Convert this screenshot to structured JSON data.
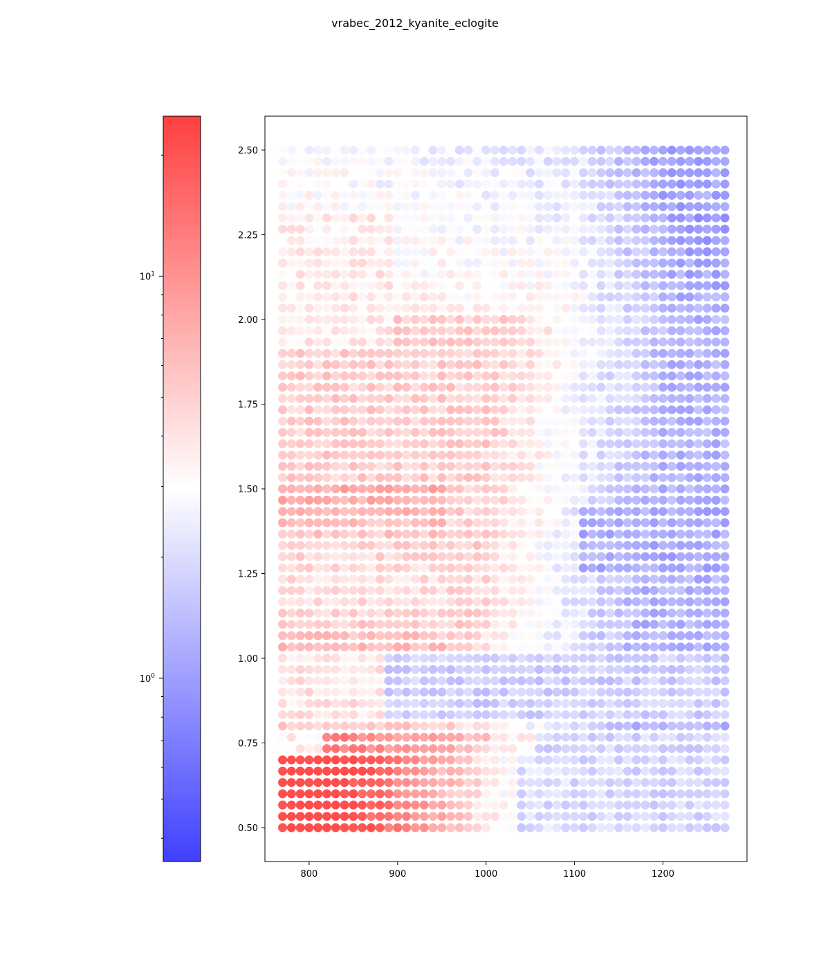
{
  "figure": {
    "title": "vrabec_2012_kyanite_eclogite"
  },
  "chart_data": {
    "type": "scatter",
    "title": "vrabec_2012_kyanite_eclogite",
    "xlabel": "",
    "ylabel": "",
    "xlim": [
      750,
      1295
    ],
    "ylim": [
      0.4,
      2.6
    ],
    "xticks": [
      800,
      900,
      1000,
      1100,
      1200
    ],
    "xtick_labels": [
      "800",
      "900",
      "1000",
      "1100",
      "1200"
    ],
    "yticks": [
      0.5,
      0.75,
      1.0,
      1.25,
      1.5,
      1.75,
      2.0,
      2.25,
      2.5
    ],
    "ytick_labels": [
      "0.50",
      "0.75",
      "1.00",
      "1.25",
      "1.50",
      "1.75",
      "2.00",
      "2.25",
      "2.50"
    ],
    "grid": false,
    "marker": "circle",
    "point_alpha": 0.7,
    "x_grid": {
      "start": 770,
      "stop": 1270,
      "step": 10
    },
    "y_grid": {
      "start": 0.5,
      "stop": 2.5,
      "step": 0.03333
    },
    "color_field_description": "log-scaled value per grid point; red high, blue low",
    "colorbar": {
      "scale": "log",
      "cmap": "bwr",
      "range": [
        0.35,
        25
      ],
      "tick_labels": [
        {
          "base": "10",
          "exp": "0",
          "value": 1
        },
        {
          "base": "10",
          "exp": "1",
          "value": 10
        }
      ],
      "colors": {
        "low": "#0000ff",
        "mid": "#ffffff",
        "high": "#ff0000"
      }
    },
    "regions": [
      {
        "name": "bottom-left high",
        "x": [
          770,
          1040
        ],
        "y": [
          0.5,
          0.72
        ],
        "log10_value": 1.3
      },
      {
        "name": "band at 0.75",
        "x": [
          820,
          1000
        ],
        "y": [
          0.73,
          0.78
        ],
        "log10_value": 1.0
      },
      {
        "name": "left mid band",
        "x": [
          770,
          960
        ],
        "y": [
          1.0,
          1.45
        ],
        "log10_value": 0.6
      },
      {
        "name": "right low region",
        "x": [
          1060,
          1270
        ],
        "y": [
          0.5,
          2.5
        ],
        "log10_value": -0.35
      },
      {
        "name": "top band low",
        "x": [
          800,
          1270
        ],
        "y": [
          2.3,
          2.5
        ],
        "log10_value": -0.2
      }
    ]
  }
}
